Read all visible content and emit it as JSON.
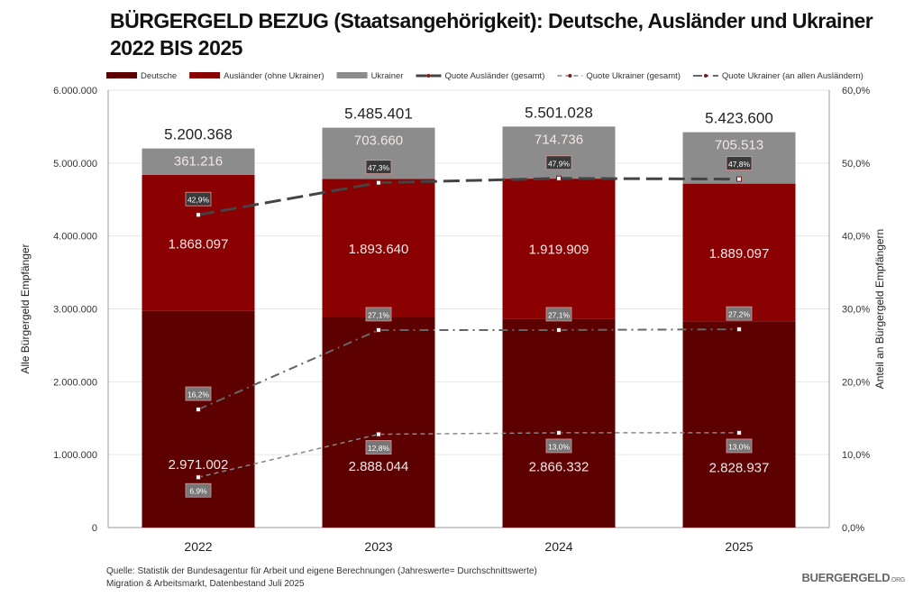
{
  "title_line1": "BÜRGERGELD BEZUG (Staatsangehörigkeit): Deutsche, Ausländer und Ukrainer",
  "title_line2": "2022 BIS 2025",
  "source_line1": "Quelle: Statistik der Bundesagentur für Arbeit und eigene Berechnungen (Jahreswerte= Durchschnittswerte)",
  "source_line2": "Migration & Arbeitsmarkt, Datenbestand Juli 2025",
  "logo": {
    "main": "BUERGERGELD",
    "suffix": ".ORG"
  },
  "watermark": "BÜRGERGELD.ORG",
  "chart_data": {
    "type": "bar",
    "stacked": true,
    "categories": [
      "2022",
      "2023",
      "2024",
      "2025"
    ],
    "ylabel": "Alle Bürgergeld Empfänger",
    "y2label": "Anteil an Bürgergeld Empfängern",
    "ylim": [
      0,
      6000000
    ],
    "y2lim": [
      0,
      60
    ],
    "yticks": [
      "0",
      "1.000.000",
      "2.000.000",
      "3.000.000",
      "4.000.000",
      "5.000.000",
      "6.000.000"
    ],
    "y2ticks": [
      "0,0%",
      "10,0%",
      "20,0%",
      "30,0%",
      "40,0%",
      "50,0%",
      "60,0%"
    ],
    "grid": true,
    "legend_position": "top",
    "series": [
      {
        "name": "Deutsche",
        "color": "#5c0000",
        "values": [
          2971002,
          2888044,
          2866332,
          2828937
        ],
        "labels": [
          "2.971.002",
          "2.888.044",
          "2.866.332",
          "2.828.937"
        ]
      },
      {
        "name": "Ausländer (ohne Ukrainer)",
        "color": "#8b0000",
        "values": [
          1868097,
          1893640,
          1919909,
          1889097
        ],
        "labels": [
          "1.868.097",
          "1.893.640",
          "1.919.909",
          "1.889.097"
        ]
      },
      {
        "name": "Ukrainer",
        "color": "#8c8c8c",
        "values": [
          361216,
          703660,
          714736,
          705513
        ],
        "labels": [
          "361.216",
          "703.660",
          "714.736",
          "705.513"
        ]
      }
    ],
    "totals": [
      "5.200.368",
      "5.485.401",
      "5.501.028",
      "5.423.600"
    ],
    "lines": [
      {
        "name": "Quote Ausländer (gesamt)",
        "axis": "right",
        "style": "long-dash",
        "color": "#444444",
        "values": [
          42.9,
          47.3,
          47.9,
          47.8
        ],
        "labels": [
          "42,9%",
          "47,3%",
          "47,9%",
          "47,8%"
        ]
      },
      {
        "name": "Quote Ukrainer (gesamt)",
        "axis": "right",
        "style": "dash",
        "color": "#888888",
        "values": [
          6.9,
          12.8,
          13.0,
          13.0
        ],
        "labels": [
          "6,9%",
          "12,8%",
          "13,0%",
          "13,0%"
        ]
      },
      {
        "name": "Quote Ukrainer (an allen Ausländern)",
        "axis": "right",
        "style": "dash-dot",
        "color": "#666666",
        "values": [
          16.2,
          27.1,
          27.1,
          27.2
        ],
        "labels": [
          "16,2%",
          "27,1%",
          "27,1%",
          "27,2%"
        ]
      }
    ]
  }
}
